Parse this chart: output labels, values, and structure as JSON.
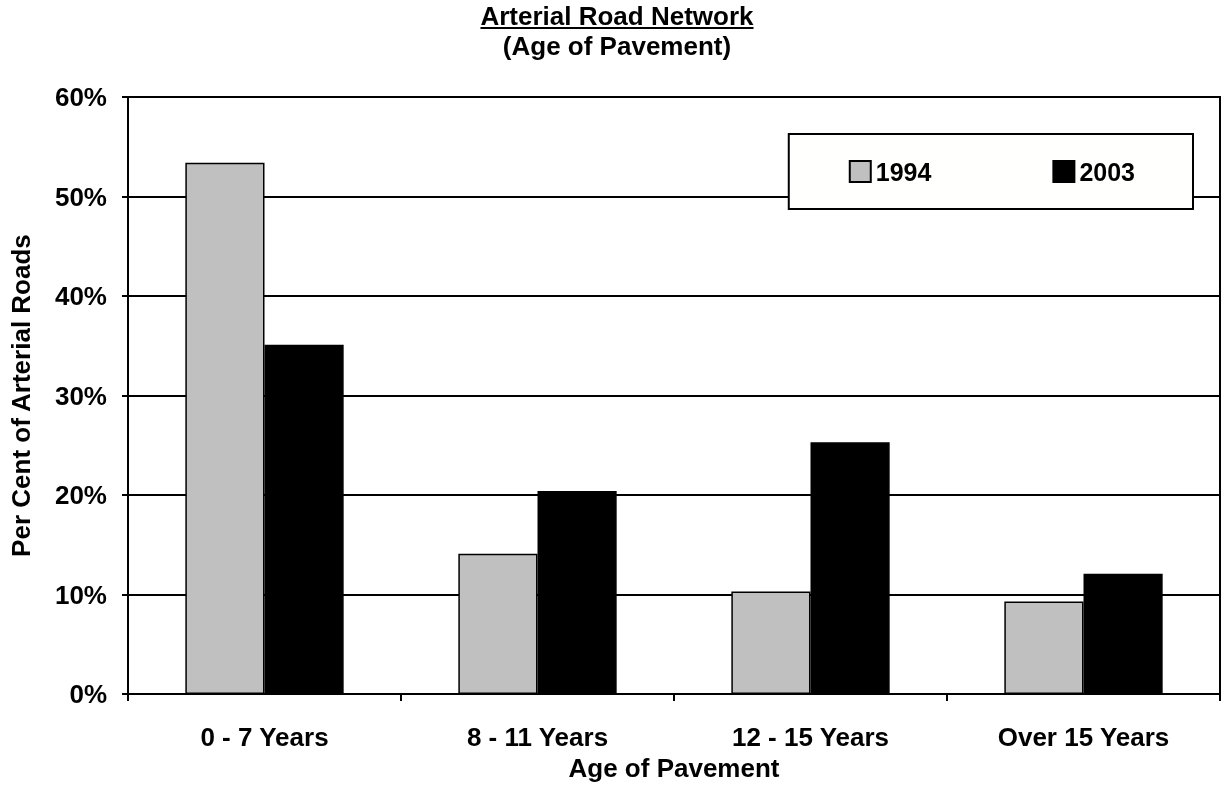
{
  "chart_data": {
    "type": "bar",
    "title": "Arterial Road Network",
    "subtitle": "(Age of Pavement)",
    "xlabel": "Age of Pavement",
    "ylabel": "Per Cent of Arterial Roads",
    "categories": [
      "0 - 7 Years",
      "8 - 11 Years",
      "12 - 15 Years",
      "Over 15 Years"
    ],
    "series": [
      {
        "name": "1994",
        "color": "#c0c0c0",
        "values": [
          53.4,
          14.1,
          10.3,
          9.3
        ]
      },
      {
        "name": "2003",
        "color": "#000000",
        "values": [
          35.1,
          20.4,
          25.3,
          12.1
        ]
      }
    ],
    "ylim": [
      0,
      60
    ],
    "yticks": [
      {
        "value": 0,
        "label": "0%"
      },
      {
        "value": 10,
        "label": "10%"
      },
      {
        "value": 20,
        "label": "20%"
      },
      {
        "value": 30,
        "label": "30%"
      },
      {
        "value": 40,
        "label": "40%"
      },
      {
        "value": 50,
        "label": "50%"
      },
      {
        "value": 60,
        "label": "60%"
      }
    ],
    "grid": "y",
    "legend": "top right"
  }
}
